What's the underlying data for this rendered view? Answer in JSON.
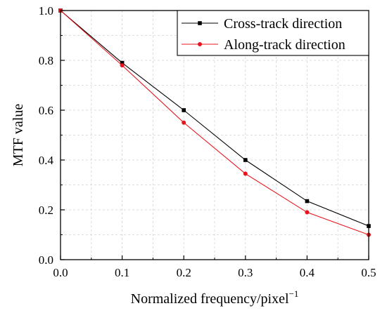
{
  "chart_data": {
    "type": "line",
    "xlabel": "Normalized frequency/pixel",
    "xlabel_sup": "−1",
    "ylabel": "MTF value",
    "xlim": [
      0,
      0.5
    ],
    "ylim": [
      0,
      1
    ],
    "x_ticks": [
      "0.0",
      "0.1",
      "0.2",
      "0.3",
      "0.4",
      "0.5"
    ],
    "y_ticks": [
      "0.0",
      "0.2",
      "0.4",
      "0.6",
      "0.8",
      "1.0"
    ],
    "grid": true,
    "legend_position": "top-right",
    "x": [
      0.0,
      0.1,
      0.2,
      0.3,
      0.4,
      0.5
    ],
    "series": [
      {
        "name": "Cross-track direction",
        "values": [
          1.0,
          0.79,
          0.6,
          0.4,
          0.235,
          0.135
        ],
        "color": "#000000",
        "marker": "square"
      },
      {
        "name": "Along-track direction",
        "values": [
          1.0,
          0.78,
          0.55,
          0.345,
          0.19,
          0.1
        ],
        "color": "#e8141c",
        "marker": "circle"
      }
    ]
  }
}
